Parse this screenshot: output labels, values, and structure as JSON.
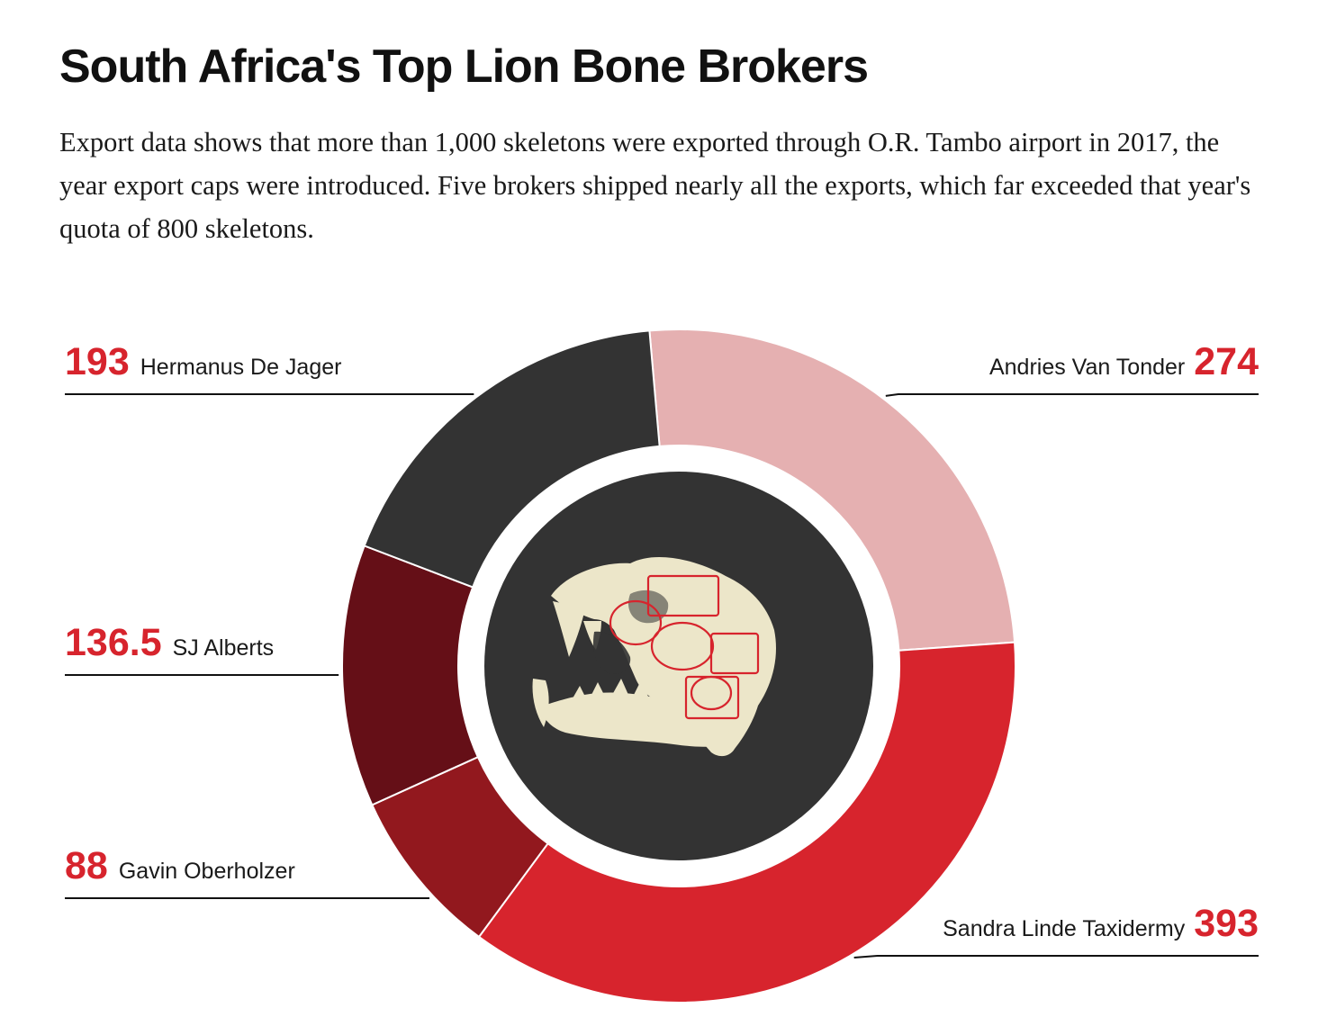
{
  "title": "South Africa's Top Lion Bone Brokers",
  "subtitle": "Export data shows that more than 1,000 skeletons were exported through O.R. Tambo airport in 2017, the year export caps were introduced. Five brokers shipped nearly all the exports, which far exceeded that year's quota of 800 skeletons.",
  "colors": {
    "value_label": "#d7242d",
    "leader_line": "#111111",
    "center": "#333333",
    "bone": "#ece6c9",
    "stamp": "#d7242d"
  },
  "center_image": {
    "icon": "lion-skull-with-passport-stamps-icon"
  },
  "chart_data": {
    "type": "pie",
    "title": "",
    "slices": [
      {
        "name": "Andries Van Tonder",
        "value": 274,
        "value_label": "274",
        "color": "#e5b0b1",
        "label_side": "right"
      },
      {
        "name": "Sandra Linde Taxidermy",
        "value": 393,
        "value_label": "393",
        "color": "#d7242d",
        "label_side": "right"
      },
      {
        "name": "Gavin Oberholzer",
        "value": 88,
        "value_label": "88",
        "color": "#92181e",
        "label_side": "left"
      },
      {
        "name": "SJ Alberts",
        "value": 136.5,
        "value_label": "136.5",
        "color": "#650f17",
        "label_side": "left"
      },
      {
        "name": "Hermanus De Jager",
        "value": 193,
        "value_label": "193",
        "color": "#333333",
        "label_side": "left"
      }
    ]
  }
}
